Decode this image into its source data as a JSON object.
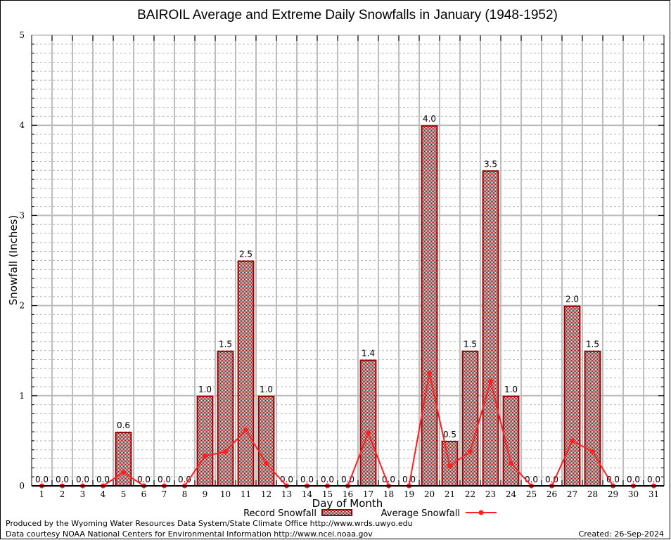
{
  "chart_data": {
    "type": "bar",
    "title": "BAIROIL Average and Extreme Daily Snowfalls in January (1948-1952)",
    "xlabel": "Day of Month",
    "ylabel": "Snowfall (Inches)",
    "xlim": [
      0.5,
      31.5
    ],
    "ylim": [
      0,
      5
    ],
    "yticks": [
      0,
      1,
      2,
      3,
      4,
      5
    ],
    "ytick_labels": [
      "0",
      "1",
      "2",
      "3",
      "4",
      "5"
    ],
    "y_minor_step": 0.1,
    "grid": true,
    "categories": [
      "1",
      "2",
      "3",
      "4",
      "5",
      "6",
      "7",
      "8",
      "9",
      "10",
      "11",
      "12",
      "13",
      "14",
      "15",
      "16",
      "17",
      "18",
      "19",
      "20",
      "21",
      "22",
      "23",
      "24",
      "25",
      "26",
      "27",
      "28",
      "29",
      "30",
      "31"
    ],
    "series": [
      {
        "name": "Record Snowfall",
        "kind": "bar",
        "color": "#990000",
        "values": [
          0.0,
          0.0,
          0.0,
          0.0,
          0.6,
          0.0,
          0.0,
          0.0,
          1.0,
          1.5,
          2.5,
          1.0,
          0.0,
          0.0,
          0.0,
          0.0,
          1.4,
          0.0,
          0.0,
          4.0,
          0.5,
          1.5,
          3.5,
          1.0,
          0.0,
          0.0,
          2.0,
          1.5,
          0.0,
          0.0,
          0.0
        ],
        "labels": [
          "0.0",
          "0.0",
          "0.0",
          "0.0",
          "0.6",
          "0.0",
          "0.0",
          "0.0",
          "1.0",
          "1.5",
          "2.5",
          "1.0",
          "0.0",
          "0.0",
          "0.0",
          "0.0",
          "1.4",
          "0.0",
          "0.0",
          "4.0",
          "0.5",
          "1.5",
          "3.5",
          "1.0",
          "0.0",
          "0.0",
          "2.0",
          "1.5",
          "0.0",
          "0.0",
          "0.0"
        ]
      },
      {
        "name": "Average Snowfall",
        "kind": "line",
        "color": "#ff2020",
        "values": [
          0,
          0,
          0,
          0,
          0.15,
          0,
          0,
          0,
          0.33,
          0.38,
          0.62,
          0.25,
          0,
          0,
          0,
          0,
          0.59,
          0,
          0,
          1.25,
          0.22,
          0.38,
          1.16,
          0.25,
          0,
          0,
          0.5,
          0.38,
          0,
          0,
          0
        ]
      }
    ],
    "legend": {
      "placement": "bottom-center",
      "entries": [
        "Record Snowfall",
        "Average Snowfall"
      ]
    },
    "footer": {
      "produced_by": "Produced by the Wyoming Water Resources Data System/State Climate Office http://www.wrds.uwyo.edu",
      "data_courtesy": "Data courtesy NOAA National Centers for Environmental Information http://www.ncei.noaa.gov",
      "created": "Created: 26-Sep-2024"
    }
  }
}
